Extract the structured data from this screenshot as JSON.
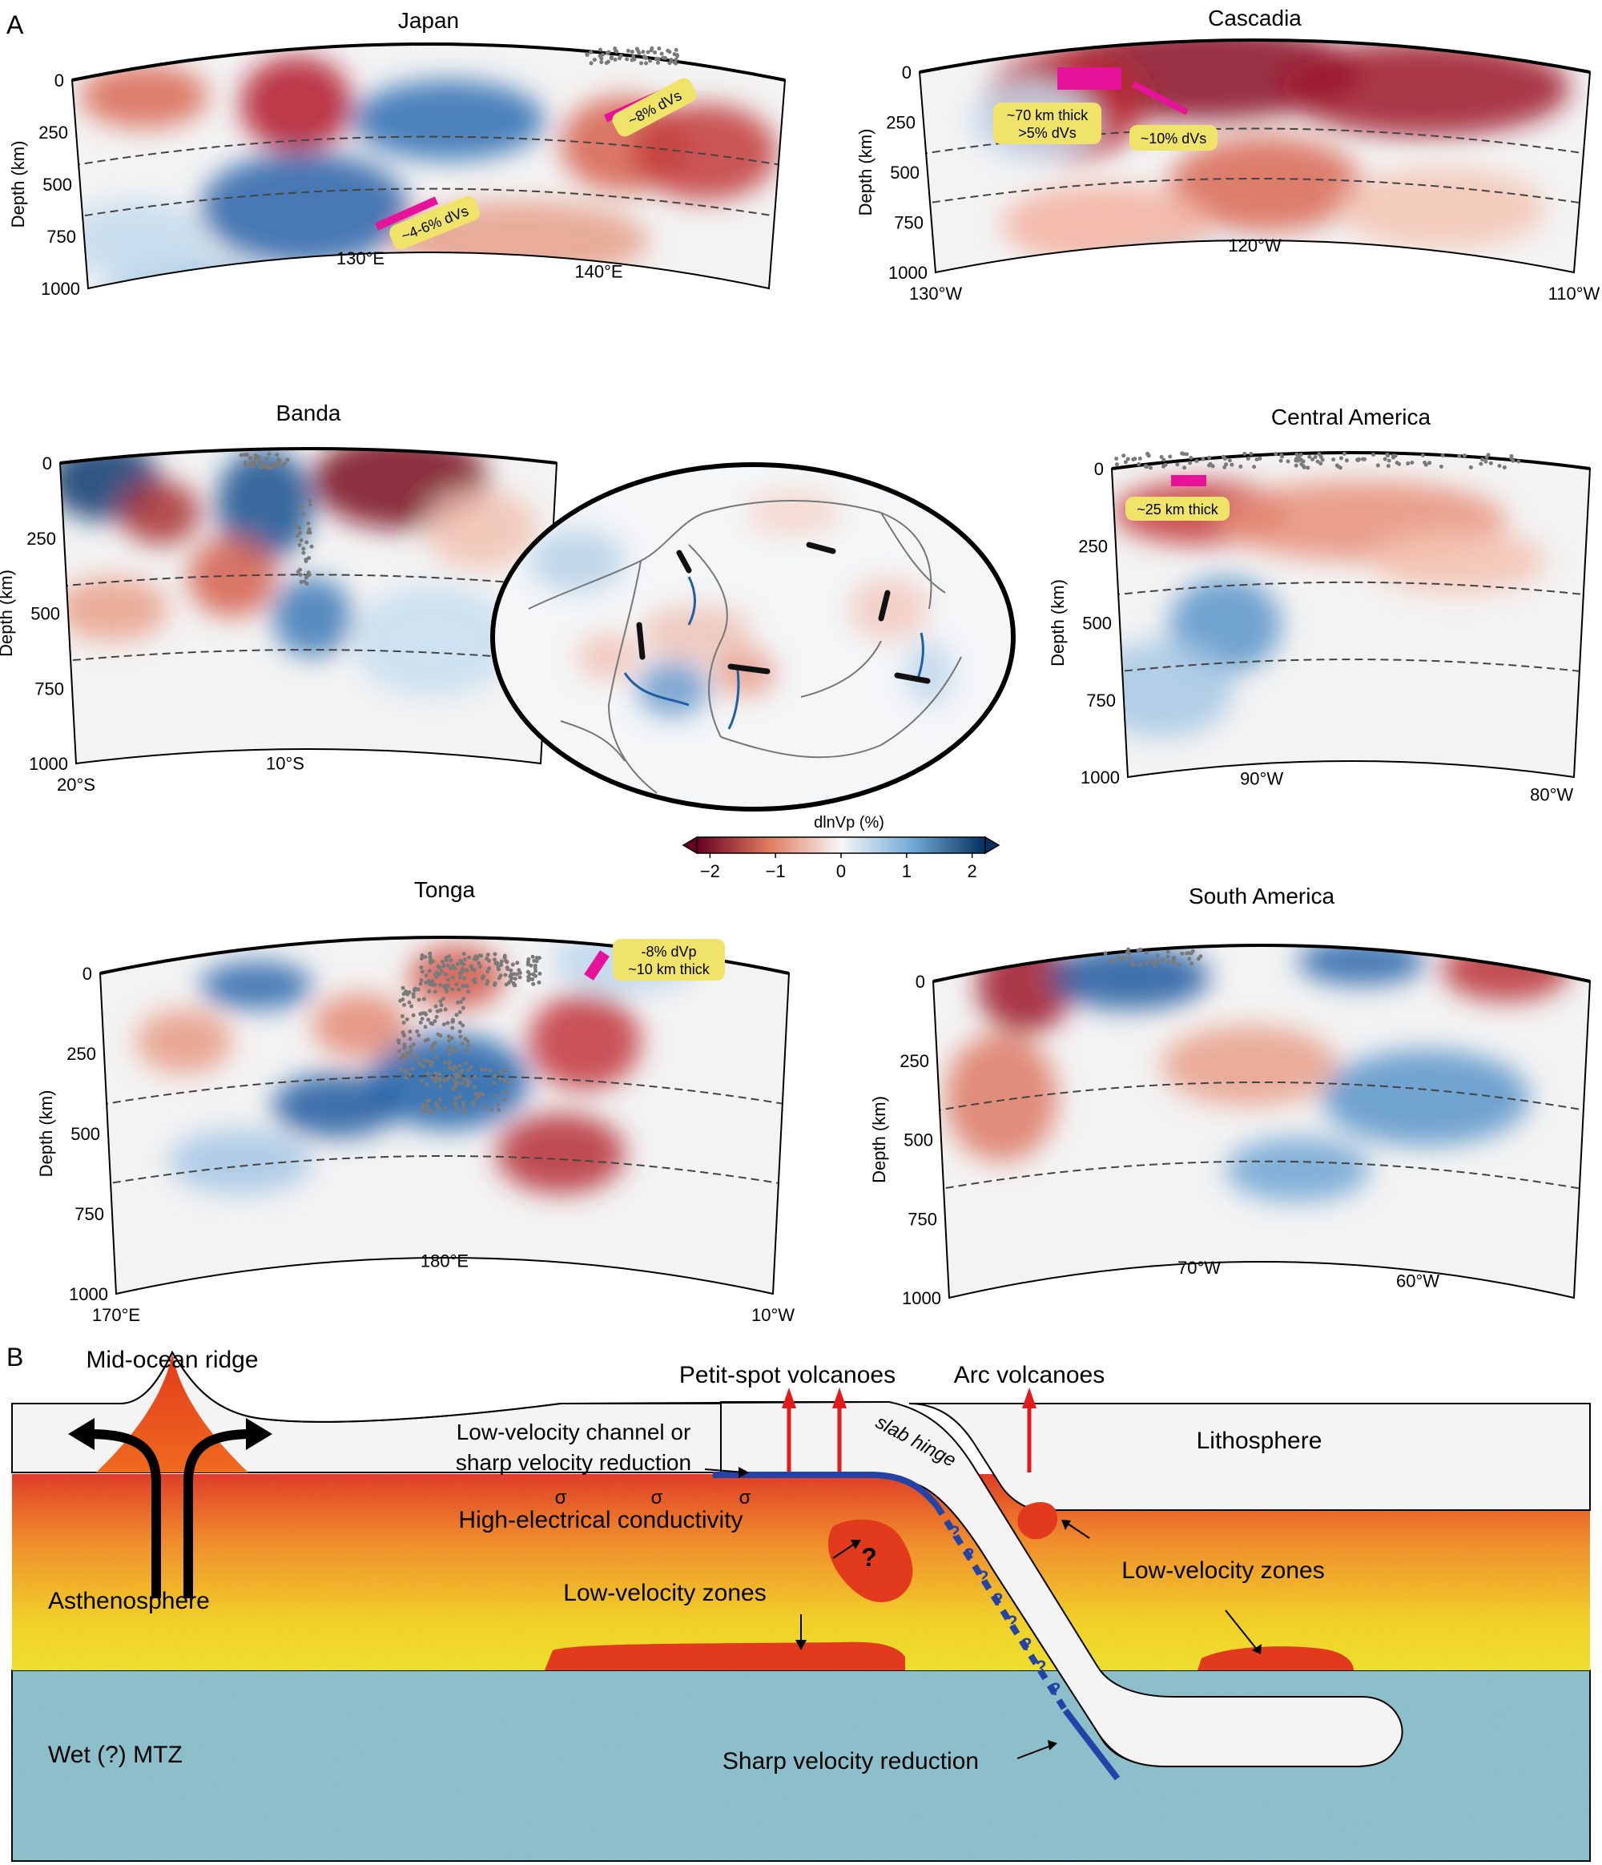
{
  "panel_a": {
    "label": "A",
    "depth_axis_label": "Depth (km)",
    "depth_ticks": [
      "0",
      "250",
      "500",
      "750",
      "1000"
    ],
    "sections": [
      {
        "title": "Japan",
        "lon_ticks": [
          "130°E",
          "140°E"
        ],
        "annotations": [
          "~8% dVs",
          "~4-6% dVs"
        ]
      },
      {
        "title": "Cascadia",
        "lon_ticks": [
          "130°W",
          "120°W",
          "110°W"
        ],
        "annotations": [
          "~70 km thick",
          ">5% dVs",
          "~10% dVs"
        ]
      },
      {
        "title": "Banda",
        "lon_ticks": [
          "20°S",
          "10°S"
        ],
        "annotations": []
      },
      {
        "title": "Central America",
        "lon_ticks": [
          "90°W",
          "80°W"
        ],
        "annotations": [
          "~25 km thick"
        ]
      },
      {
        "title": "Tonga",
        "lon_ticks": [
          "170°E",
          "180°E",
          "10°W"
        ],
        "annotations": [
          "-8% dVp",
          "~10 km thick"
        ]
      },
      {
        "title": "South America",
        "lon_ticks": [
          "70°W",
          "60°W"
        ],
        "annotations": []
      }
    ],
    "colorbar": {
      "label": "dlnVp (%)",
      "ticks": [
        "−2",
        "−1",
        "0",
        "1",
        "2"
      ],
      "tick_values": [
        -2,
        -1,
        0,
        1,
        2
      ],
      "range": [
        -2.2,
        2.2
      ]
    }
  },
  "panel_b": {
    "label": "B",
    "labels": {
      "mid_ocean_ridge": "Mid-ocean ridge",
      "petit_spot": "Petit-spot volcanoes",
      "arc_volcanoes": "Arc volcanoes",
      "lithosphere": "Lithosphere",
      "lvc_line1": "Low-velocity channel or",
      "lvc_line2": "sharp velocity reduction",
      "slab_hinge": "slab hinge",
      "conductivity": "High-electrical conductivity",
      "sigma": "σ",
      "lvz_left": "Low-velocity zones",
      "lvz_right": "Low-velocity zones",
      "asthenosphere": "Asthenosphere",
      "mtz": "Wet (?) MTZ",
      "sharp_reduction": "Sharp velocity reduction",
      "question": "?"
    }
  }
}
